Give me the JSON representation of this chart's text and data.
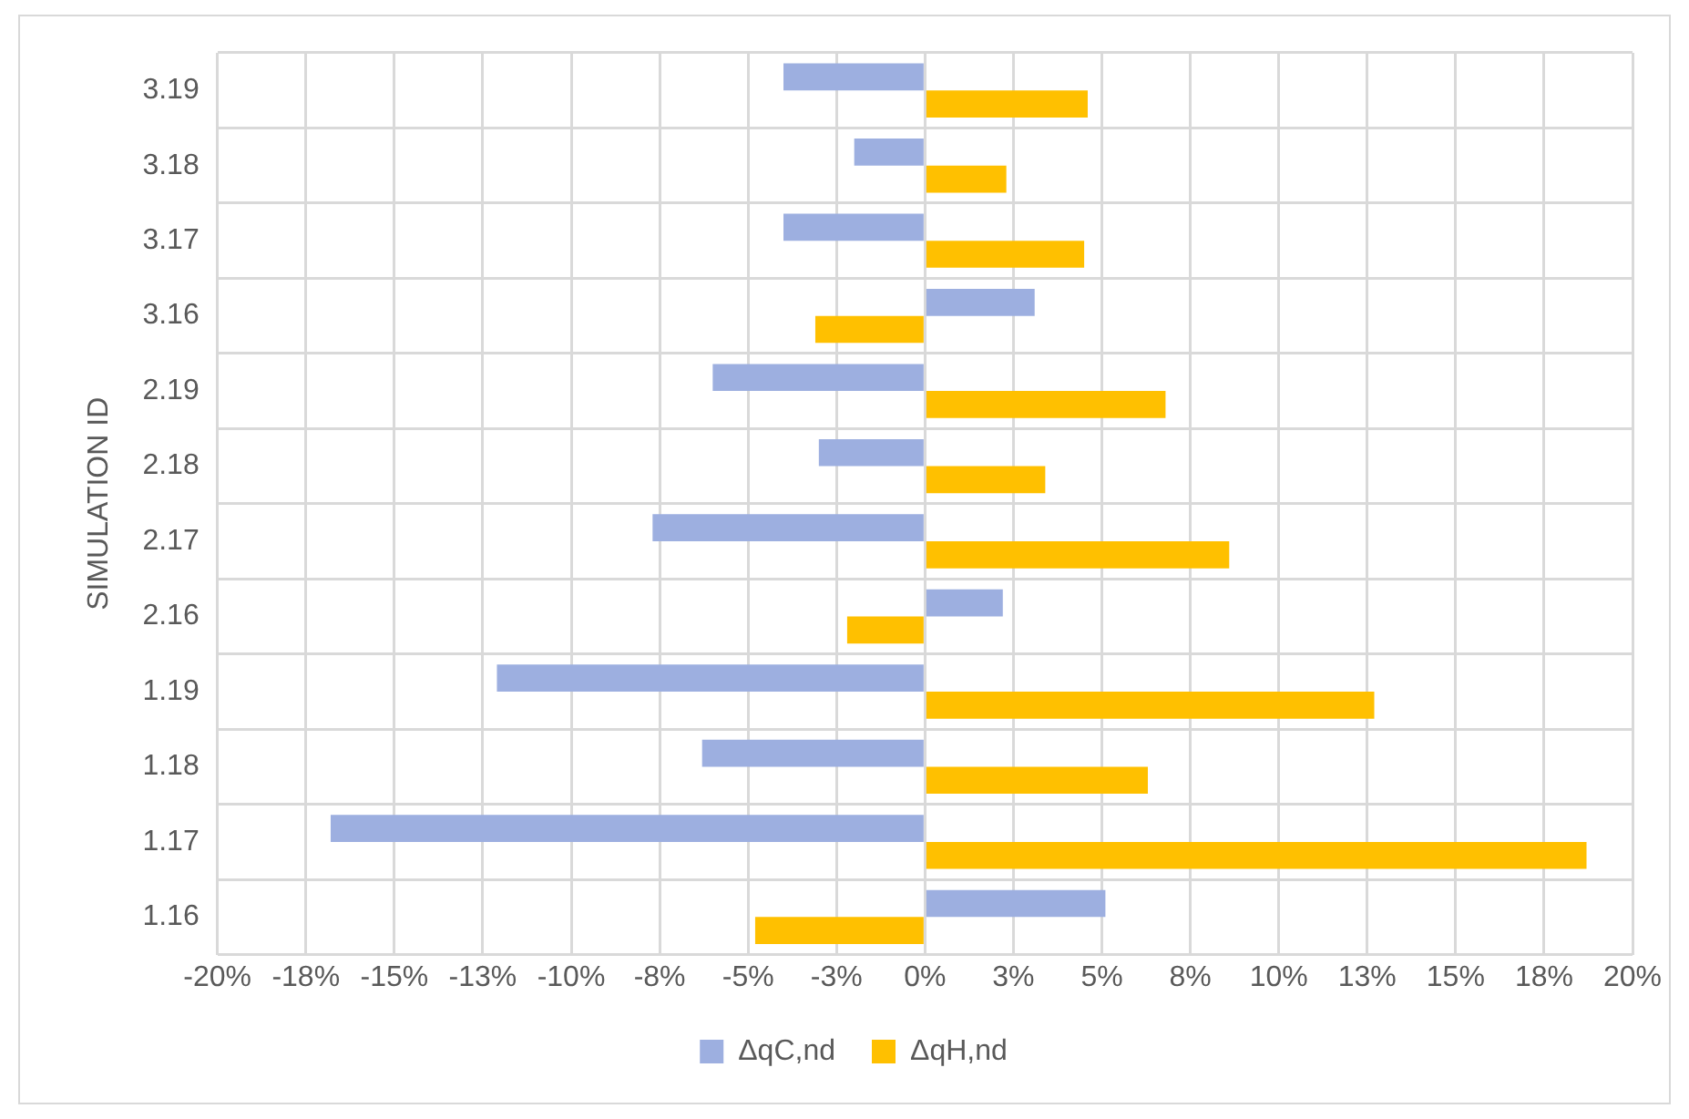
{
  "chart_data": {
    "type": "bar",
    "orientation": "horizontal",
    "ylabel": "SIMULATION ID",
    "categories": [
      "3.19",
      "3.18",
      "3.17",
      "3.16",
      "2.19",
      "2.18",
      "2.17",
      "2.16",
      "1.19",
      "1.18",
      "1.17",
      "1.16"
    ],
    "series": [
      {
        "name": "ΔqC,nd",
        "color": "#9dafe0",
        "values": [
          -4.0,
          -2.0,
          -4.0,
          3.1,
          -6.0,
          -3.0,
          -7.7,
          2.2,
          -12.1,
          -6.3,
          -16.8,
          5.1
        ]
      },
      {
        "name": "ΔqH,nd",
        "color": "#ffc000",
        "values": [
          4.6,
          2.3,
          4.5,
          -3.1,
          6.8,
          3.4,
          8.6,
          -2.2,
          12.7,
          6.3,
          18.7,
          -4.8
        ]
      }
    ],
    "xlim": [
      -20,
      20
    ],
    "xticks": [
      {
        "value": -20,
        "label": "-20%"
      },
      {
        "value": -17.5,
        "label": "-18%"
      },
      {
        "value": -15,
        "label": "-15%"
      },
      {
        "value": -12.5,
        "label": "-13%"
      },
      {
        "value": -10,
        "label": "-10%"
      },
      {
        "value": -7.5,
        "label": "-8%"
      },
      {
        "value": -5,
        "label": "-5%"
      },
      {
        "value": -2.5,
        "label": "-3%"
      },
      {
        "value": 0,
        "label": "0%"
      },
      {
        "value": 2.5,
        "label": "3%"
      },
      {
        "value": 5,
        "label": "5%"
      },
      {
        "value": 7.5,
        "label": "8%"
      },
      {
        "value": 10,
        "label": "10%"
      },
      {
        "value": 12.5,
        "label": "13%"
      },
      {
        "value": 15,
        "label": "15%"
      },
      {
        "value": 17.5,
        "label": "18%"
      },
      {
        "value": 20,
        "label": "20%"
      }
    ],
    "grid": true,
    "legend": "bottom"
  }
}
